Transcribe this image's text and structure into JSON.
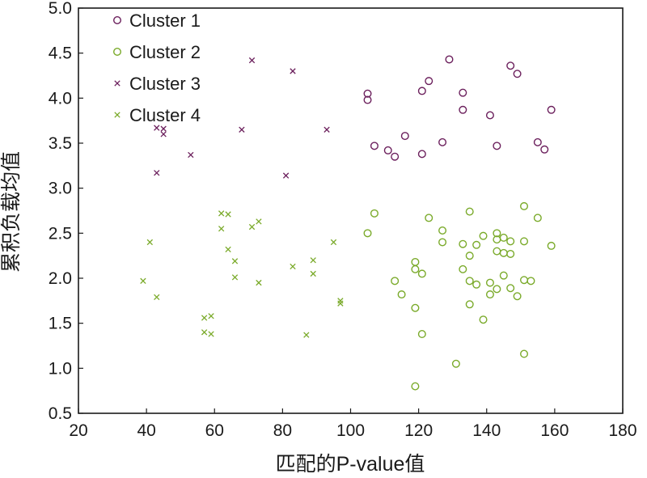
{
  "chart_data": {
    "type": "scatter",
    "title": "",
    "xlabel": "匹配的P-value值",
    "ylabel": "累积负载均值",
    "xlim": [
      20,
      180
    ],
    "ylim": [
      0.5,
      5.0
    ],
    "xticks": [
      "20",
      "40",
      "60",
      "80",
      "100",
      "120",
      "140",
      "160",
      "180"
    ],
    "yticks": [
      "0.5",
      "1.0",
      "1.5",
      "2.0",
      "2.5",
      "3.0",
      "3.5",
      "4.0",
      "4.5",
      "5.0"
    ],
    "legend_position": "top-left",
    "grid": false,
    "series": [
      {
        "name": "Cluster 1",
        "marker": "circle",
        "color": "#6b1f5c",
        "points": [
          [
            105,
            4.05
          ],
          [
            105,
            3.98
          ],
          [
            107,
            3.47
          ],
          [
            111,
            3.42
          ],
          [
            113,
            3.35
          ],
          [
            116,
            3.58
          ],
          [
            121,
            4.08
          ],
          [
            121,
            3.38
          ],
          [
            123,
            4.19
          ],
          [
            127,
            3.51
          ],
          [
            129,
            4.43
          ],
          [
            133,
            4.06
          ],
          [
            133,
            3.87
          ],
          [
            141,
            3.81
          ],
          [
            143,
            3.47
          ],
          [
            147,
            4.36
          ],
          [
            149,
            4.27
          ],
          [
            155,
            3.51
          ],
          [
            157,
            3.43
          ],
          [
            159,
            3.87
          ]
        ]
      },
      {
        "name": "Cluster 2",
        "marker": "circle",
        "color": "#7aaa2a",
        "points": [
          [
            105,
            2.5
          ],
          [
            107,
            2.72
          ],
          [
            113,
            1.97
          ],
          [
            115,
            1.82
          ],
          [
            119,
            2.18
          ],
          [
            119,
            2.1
          ],
          [
            119,
            1.67
          ],
          [
            119,
            0.8
          ],
          [
            121,
            2.05
          ],
          [
            121,
            1.38
          ],
          [
            123,
            2.67
          ],
          [
            127,
            2.53
          ],
          [
            127,
            2.4
          ],
          [
            131,
            1.05
          ],
          [
            133,
            2.38
          ],
          [
            133,
            2.1
          ],
          [
            135,
            2.74
          ],
          [
            135,
            2.25
          ],
          [
            135,
            1.97
          ],
          [
            135,
            1.71
          ],
          [
            137,
            2.37
          ],
          [
            137,
            1.93
          ],
          [
            139,
            2.47
          ],
          [
            139,
            1.54
          ],
          [
            141,
            1.95
          ],
          [
            141,
            1.82
          ],
          [
            143,
            2.5
          ],
          [
            143,
            2.43
          ],
          [
            143,
            2.3
          ],
          [
            143,
            1.88
          ],
          [
            145,
            2.45
          ],
          [
            145,
            2.28
          ],
          [
            145,
            2.03
          ],
          [
            147,
            2.41
          ],
          [
            147,
            2.27
          ],
          [
            147,
            1.89
          ],
          [
            149,
            1.8
          ],
          [
            151,
            2.8
          ],
          [
            151,
            2.41
          ],
          [
            151,
            1.98
          ],
          [
            151,
            1.16
          ],
          [
            153,
            1.97
          ],
          [
            155,
            2.67
          ],
          [
            159,
            2.36
          ]
        ]
      },
      {
        "name": "Cluster 3",
        "marker": "x",
        "color": "#6b1f5c",
        "points": [
          [
            43,
            3.67
          ],
          [
            43,
            3.17
          ],
          [
            45,
            3.66
          ],
          [
            45,
            3.6
          ],
          [
            53,
            3.37
          ],
          [
            68,
            3.65
          ],
          [
            71,
            4.42
          ],
          [
            81,
            3.14
          ],
          [
            83,
            4.3
          ],
          [
            93,
            3.65
          ]
        ]
      },
      {
        "name": "Cluster 4",
        "marker": "x",
        "color": "#7aaa2a",
        "points": [
          [
            39,
            1.97
          ],
          [
            41,
            2.4
          ],
          [
            43,
            1.79
          ],
          [
            57,
            1.56
          ],
          [
            57,
            1.4
          ],
          [
            59,
            1.58
          ],
          [
            59,
            1.38
          ],
          [
            62,
            2.72
          ],
          [
            62,
            2.55
          ],
          [
            64,
            2.71
          ],
          [
            64,
            2.32
          ],
          [
            66,
            2.19
          ],
          [
            66,
            2.01
          ],
          [
            71,
            2.57
          ],
          [
            73,
            2.63
          ],
          [
            73,
            1.95
          ],
          [
            83,
            2.13
          ],
          [
            87,
            1.37
          ],
          [
            89,
            2.2
          ],
          [
            89,
            2.05
          ],
          [
            95,
            2.4
          ],
          [
            97,
            1.75
          ],
          [
            97,
            1.72
          ]
        ]
      }
    ]
  }
}
